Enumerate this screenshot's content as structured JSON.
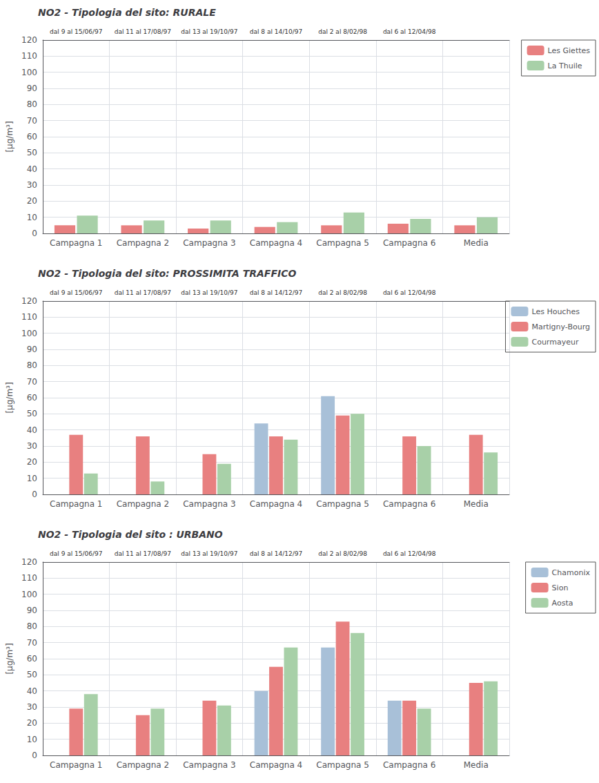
{
  "chart_data": [
    {
      "type": "bar",
      "title": "NO2 - Tipologia del sito: RURALE",
      "ylabel": "[μg/m³]",
      "categories": [
        "Campagna 1",
        "Campagna 2",
        "Campagna 3",
        "Campagna 4",
        "Campagna 5",
        "Campagna 6",
        "Media"
      ],
      "annotations": [
        "dal 9 al 15/06/97",
        "dal 11 al 17/08/97",
        "dal 13 al 19/10/97",
        "dal 8 al 14/10/97",
        "dal 2 al 8/02/98",
        "dal 6 al 12/04/98"
      ],
      "series": [
        {
          "name": "Les Giettes",
          "color": "#e88080",
          "values": [
            5,
            5,
            3,
            4,
            5,
            6,
            5
          ]
        },
        {
          "name": "La Thuile",
          "color": "#a8d0a8",
          "values": [
            11,
            8,
            8,
            7,
            13,
            9,
            10
          ]
        }
      ],
      "ylim": [
        0,
        120
      ],
      "yticks": [
        0,
        10,
        20,
        30,
        40,
        50,
        60,
        70,
        80,
        90,
        100,
        110,
        120
      ],
      "grid": true,
      "legend": "right"
    },
    {
      "type": "bar",
      "title": "NO2 - Tipologia del sito: PROSSIMITA TRAFFICO",
      "ylabel": "[μg/m³]",
      "categories": [
        "Campagna 1",
        "Campagna 2",
        "Campagna 3",
        "Campagna 4",
        "Campagna 5",
        "Campagna 6",
        "Media"
      ],
      "annotations": [
        "dal 9 al 15/06/97",
        "dal 11 al 17/08/97",
        "dal 13 al 19/10/97",
        "dal 8 al 14/12/97",
        "dal 2 al 8/02/98",
        "dal 6 al 12/04/98"
      ],
      "series": [
        {
          "name": "Les Houches",
          "color": "#a8c0d8",
          "values": [
            0,
            0,
            0,
            44,
            61,
            0,
            0
          ]
        },
        {
          "name": "Martigny-Bourg",
          "color": "#e88080",
          "values": [
            37,
            36,
            25,
            36,
            49,
            36,
            37
          ]
        },
        {
          "name": "Courmayeur",
          "color": "#a8d0a8",
          "values": [
            13,
            8,
            19,
            34,
            50,
            30,
            26
          ]
        }
      ],
      "ylim": [
        0,
        120
      ],
      "yticks": [
        0,
        10,
        20,
        30,
        40,
        50,
        60,
        70,
        80,
        90,
        100,
        110,
        120
      ],
      "grid": true,
      "legend": "right"
    },
    {
      "type": "bar",
      "title": "NO2 - Tipologia del sito : URBANO",
      "ylabel": "[μg/m³]",
      "categories": [
        "Campagna 1",
        "Campagna 2",
        "Campagna 3",
        "Campagna 4",
        "Campagna 5",
        "Campagna 6",
        "Media"
      ],
      "annotations": [
        "dal 9 al 15/06/97",
        "dal 11 al 17/08/97",
        "dal 13 al 19/10/97",
        "dal 8 al 14/12/97",
        "dal 2 al 8/02/98",
        "dal 6 al 12/04/98"
      ],
      "series": [
        {
          "name": "Chamonix",
          "color": "#a8c0d8",
          "values": [
            0,
            0,
            0,
            40,
            67,
            34,
            0
          ]
        },
        {
          "name": "Sion",
          "color": "#e88080",
          "values": [
            29,
            25,
            34,
            55,
            83,
            34,
            45
          ]
        },
        {
          "name": "Aosta",
          "color": "#a8d0a8",
          "values": [
            38,
            29,
            31,
            67,
            76,
            29,
            46
          ]
        }
      ],
      "ylim": [
        0,
        120
      ],
      "yticks": [
        0,
        10,
        20,
        30,
        40,
        50,
        60,
        70,
        80,
        90,
        100,
        110,
        120
      ],
      "grid": true,
      "legend": "right"
    }
  ]
}
